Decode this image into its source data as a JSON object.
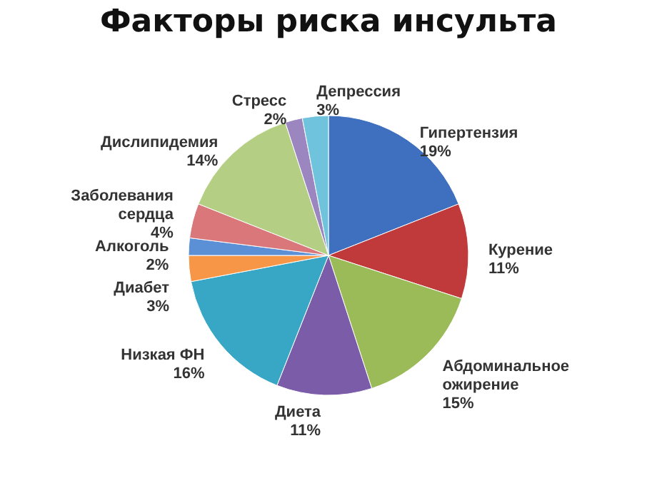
{
  "chart_data": {
    "type": "pie",
    "title": "Факторы риска инсульта",
    "categories": [
      "Гипертензия",
      "Курение",
      "Абдоминальное ожирение",
      "Диета",
      "Низкая ФН",
      "Диабет",
      "Алкоголь",
      "Заболевания сердца",
      "Дислипидемия",
      "Стресс",
      "Депрессия"
    ],
    "values": [
      19,
      11,
      15,
      11,
      16,
      3,
      2,
      4,
      14,
      2,
      3
    ],
    "colors": [
      "#3f6fbf",
      "#c0393b",
      "#9bbb59",
      "#7a5ca8",
      "#38a7c6",
      "#f79646",
      "#5b8fd6",
      "#d9777a",
      "#b4cf84",
      "#9b86c0",
      "#6fc3dd"
    ],
    "value_labels": [
      "19%",
      "11%",
      "15%",
      "11%",
      "16%",
      "3%",
      "2%",
      "4%",
      "14%",
      "2%",
      "3%"
    ]
  }
}
